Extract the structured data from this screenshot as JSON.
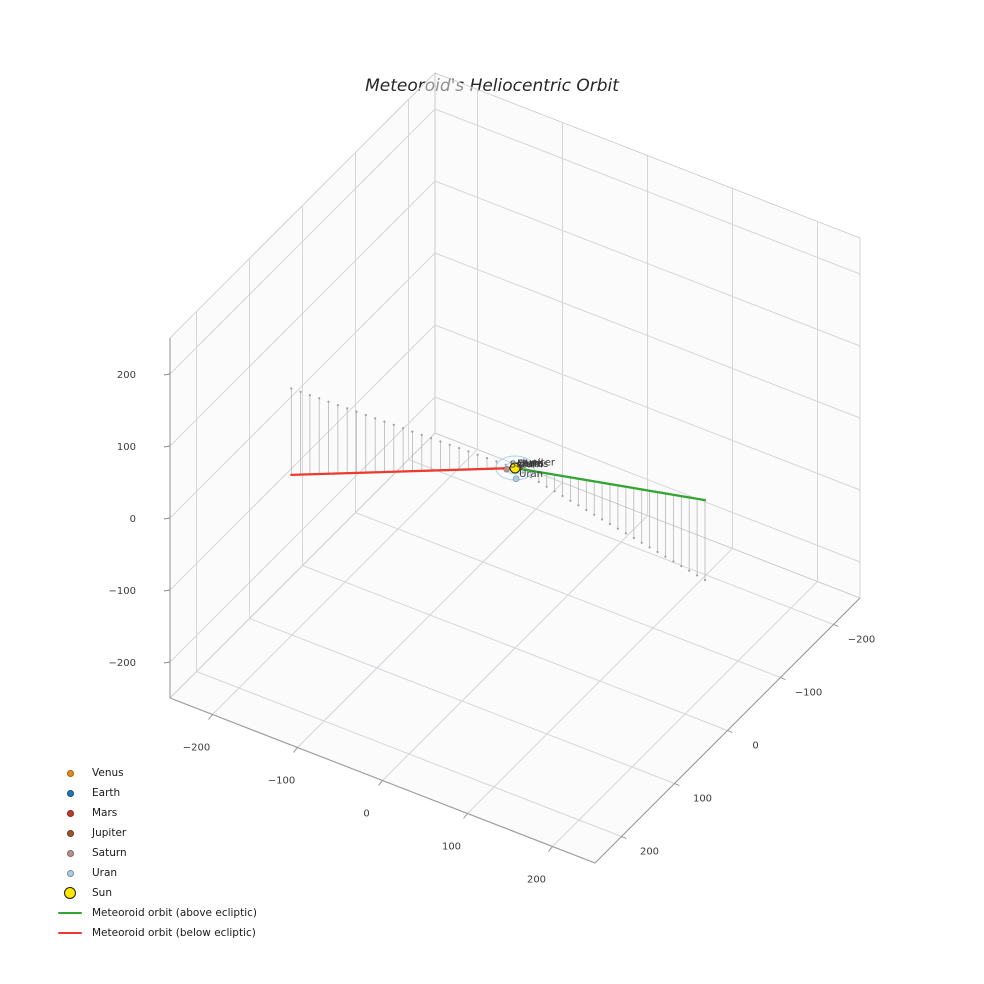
{
  "chart_data": {
    "type": "scatter",
    "projection": "3d",
    "title": "Meteoroid's Heliocentric Orbit",
    "axes": {
      "x": {
        "min": -250,
        "max": 250,
        "ticks": [
          -200,
          -100,
          0,
          100,
          200
        ]
      },
      "y": {
        "min": -250,
        "max": 250,
        "ticks": [
          -200,
          -100,
          0,
          100,
          200
        ]
      },
      "z": {
        "min": -250,
        "max": 250,
        "ticks": [
          -200,
          -100,
          0,
          100,
          200
        ]
      }
    },
    "grid": true,
    "grid_color": "#d6d6da",
    "orbit_circle_color": "#a9d4e6",
    "sun": {
      "label": "Sun",
      "position": [
        0,
        0,
        0
      ],
      "color": "#ffe800",
      "edge_color": "#1a1a1a"
    },
    "planets": [
      {
        "name": "Venus",
        "color": "#e68a19",
        "orbit_radius": 0.72,
        "position": [
          0.5,
          0.5,
          0
        ]
      },
      {
        "name": "Earth",
        "color": "#1f77b4",
        "orbit_radius": 1.0,
        "position": [
          -0.9,
          0.4,
          0
        ]
      },
      {
        "name": "Mars",
        "color": "#bf3b2b",
        "orbit_radius": 1.52,
        "position": [
          1.2,
          -0.9,
          0
        ]
      },
      {
        "name": "Jupiter",
        "color": "#a0522d",
        "orbit_radius": 5.2,
        "position": [
          3.0,
          -3.5,
          0
        ]
      },
      {
        "name": "Saturn",
        "color": "#bc8f8f",
        "orbit_radius": 9.54,
        "position": [
          -6.0,
          6.0,
          0
        ]
      },
      {
        "name": "Uran",
        "color": "#a5cfe4",
        "orbit_radius": 19.2,
        "position": [
          10.0,
          14.0,
          0
        ]
      }
    ],
    "meteoroid_orbit": {
      "above": {
        "label": "Meteoroid orbit (above ecliptic)",
        "color": "#33a532",
        "from": [
          0,
          0,
          0
        ],
        "to": [
          256,
          52,
          111
        ]
      },
      "below": {
        "label": "Meteoroid orbit (below ecliptic)",
        "color": "#ed3a2e",
        "from": [
          -257,
          10,
          -120
        ],
        "to": [
          0,
          0,
          0
        ]
      },
      "stems": {
        "per_side": 24,
        "color": "#b8b8b8",
        "dot_color": "#a0a0a0"
      }
    }
  },
  "legend": {
    "items": [
      {
        "label": "Venus",
        "marker": "dot",
        "color": "#e68a19"
      },
      {
        "label": "Earth",
        "marker": "dot",
        "color": "#1f77b4"
      },
      {
        "label": "Mars",
        "marker": "dot",
        "color": "#bf3b2b"
      },
      {
        "label": "Jupiter",
        "marker": "dot",
        "color": "#a0522d"
      },
      {
        "label": "Saturn",
        "marker": "dot",
        "color": "#bc8f8f"
      },
      {
        "label": "Uran",
        "marker": "dot",
        "color": "#a5cfe4"
      },
      {
        "label": "Sun",
        "marker": "dot-large",
        "color": "#ffe800",
        "edge": "#1a1a1a"
      },
      {
        "label": "Meteoroid orbit (above ecliptic)",
        "marker": "line",
        "color": "#33a532"
      },
      {
        "label": "Meteoroid orbit (below ecliptic)",
        "marker": "line",
        "color": "#ed3a2e"
      }
    ]
  }
}
